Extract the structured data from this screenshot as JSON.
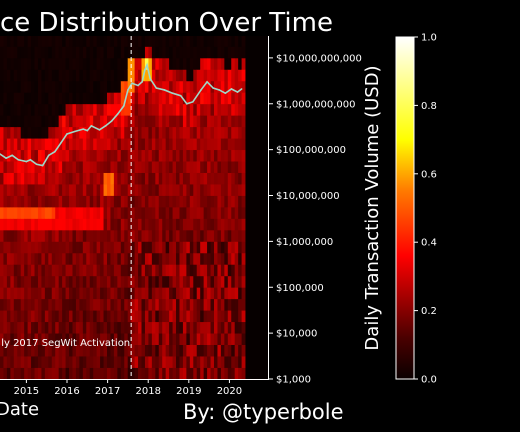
{
  "chart_data": {
    "type": "heatmap",
    "title": "ce Distribution Over Time",
    "xlabel": "Date",
    "credit": "By: @typerbole",
    "annotation": "ly 2017 SegWit Activation",
    "annotation_x": 2017.58,
    "x_ticks": [
      "2015",
      "2016",
      "2017",
      "2018",
      "2019",
      "2020"
    ],
    "x_tick_values": [
      2015,
      2016,
      2017,
      2018,
      2019,
      2020
    ],
    "xlim": [
      2014.35,
      2020.95
    ],
    "y_scale": "log",
    "ylim": [
      1000,
      30000000000
    ],
    "y_ticks": [
      "$1,000",
      "$10,000",
      "$100,000",
      "$1,000,000",
      "$10,000,000",
      "$100,000,000",
      "$1,000,000,000",
      "$10,000,000,000"
    ],
    "y_tick_values": [
      1000,
      10000,
      100000,
      1000000,
      10000000,
      100000000,
      1000000000,
      10000000000
    ],
    "colorbar": {
      "label": "Daily Transaction Volume (USD)",
      "ticks": [
        "0.0",
        "0.2",
        "0.4",
        "0.6",
        "0.8",
        "1.0"
      ],
      "tick_values": [
        0,
        0.2,
        0.4,
        0.6,
        0.8,
        1.0
      ],
      "colormap": "hot"
    },
    "series": [
      {
        "type": "line",
        "color": "#9fd8c8",
        "x": [
          2014.35,
          2014.5,
          2014.65,
          2014.8,
          2015.0,
          2015.1,
          2015.25,
          2015.4,
          2015.55,
          2015.7,
          2015.85,
          2016.0,
          2016.2,
          2016.4,
          2016.5,
          2016.6,
          2016.8,
          2016.95,
          2017.1,
          2017.25,
          2017.4,
          2017.5,
          2017.6,
          2017.75,
          2017.85,
          2017.92,
          2017.97,
          2018.05,
          2018.2,
          2018.4,
          2018.6,
          2018.8,
          2018.95,
          2019.1,
          2019.3,
          2019.45,
          2019.6,
          2019.75,
          2019.9,
          2020.05,
          2020.2,
          2020.3
        ],
        "y": [
          80000000,
          65000000,
          75000000,
          60000000,
          55000000,
          60000000,
          48000000,
          45000000,
          75000000,
          90000000,
          140000000,
          220000000,
          250000000,
          280000000,
          260000000,
          330000000,
          270000000,
          330000000,
          420000000,
          600000000,
          900000000,
          2000000000,
          2800000000,
          2500000000,
          3000000000,
          5500000000,
          7000000000,
          3500000000,
          2200000000,
          2000000000,
          1700000000,
          1500000000,
          1000000000,
          1100000000,
          2000000000,
          3000000000,
          2200000000,
          2000000000,
          1700000000,
          2100000000,
          1800000000,
          2100000000
        ]
      }
    ],
    "hotspots": [
      {
        "x0": 2014.35,
        "x1": 2016.85,
        "y0": 1500000,
        "y1": 5000000,
        "v": 0.33
      },
      {
        "x0": 2014.35,
        "x1": 2015.7,
        "y0": 2500000,
        "y1": 5000000,
        "v": 0.45
      },
      {
        "x0": 2016.85,
        "x1": 2017.1,
        "y0": 10000000,
        "y1": 25000000,
        "v": 0.5
      },
      {
        "x0": 2017.25,
        "x1": 2017.5,
        "y0": 500000000,
        "y1": 3000000000,
        "v": 0.45
      },
      {
        "x0": 2017.45,
        "x1": 2017.6,
        "y0": 2000000000,
        "y1": 8000000000,
        "v": 0.55
      },
      {
        "x0": 2017.8,
        "x1": 2018.05,
        "y0": 3000000000,
        "y1": 10000000000,
        "v": 0.6
      },
      {
        "x0": 2017.88,
        "x1": 2017.98,
        "y0": 5000000000,
        "y1": 8000000000,
        "v": 0.78
      }
    ]
  }
}
